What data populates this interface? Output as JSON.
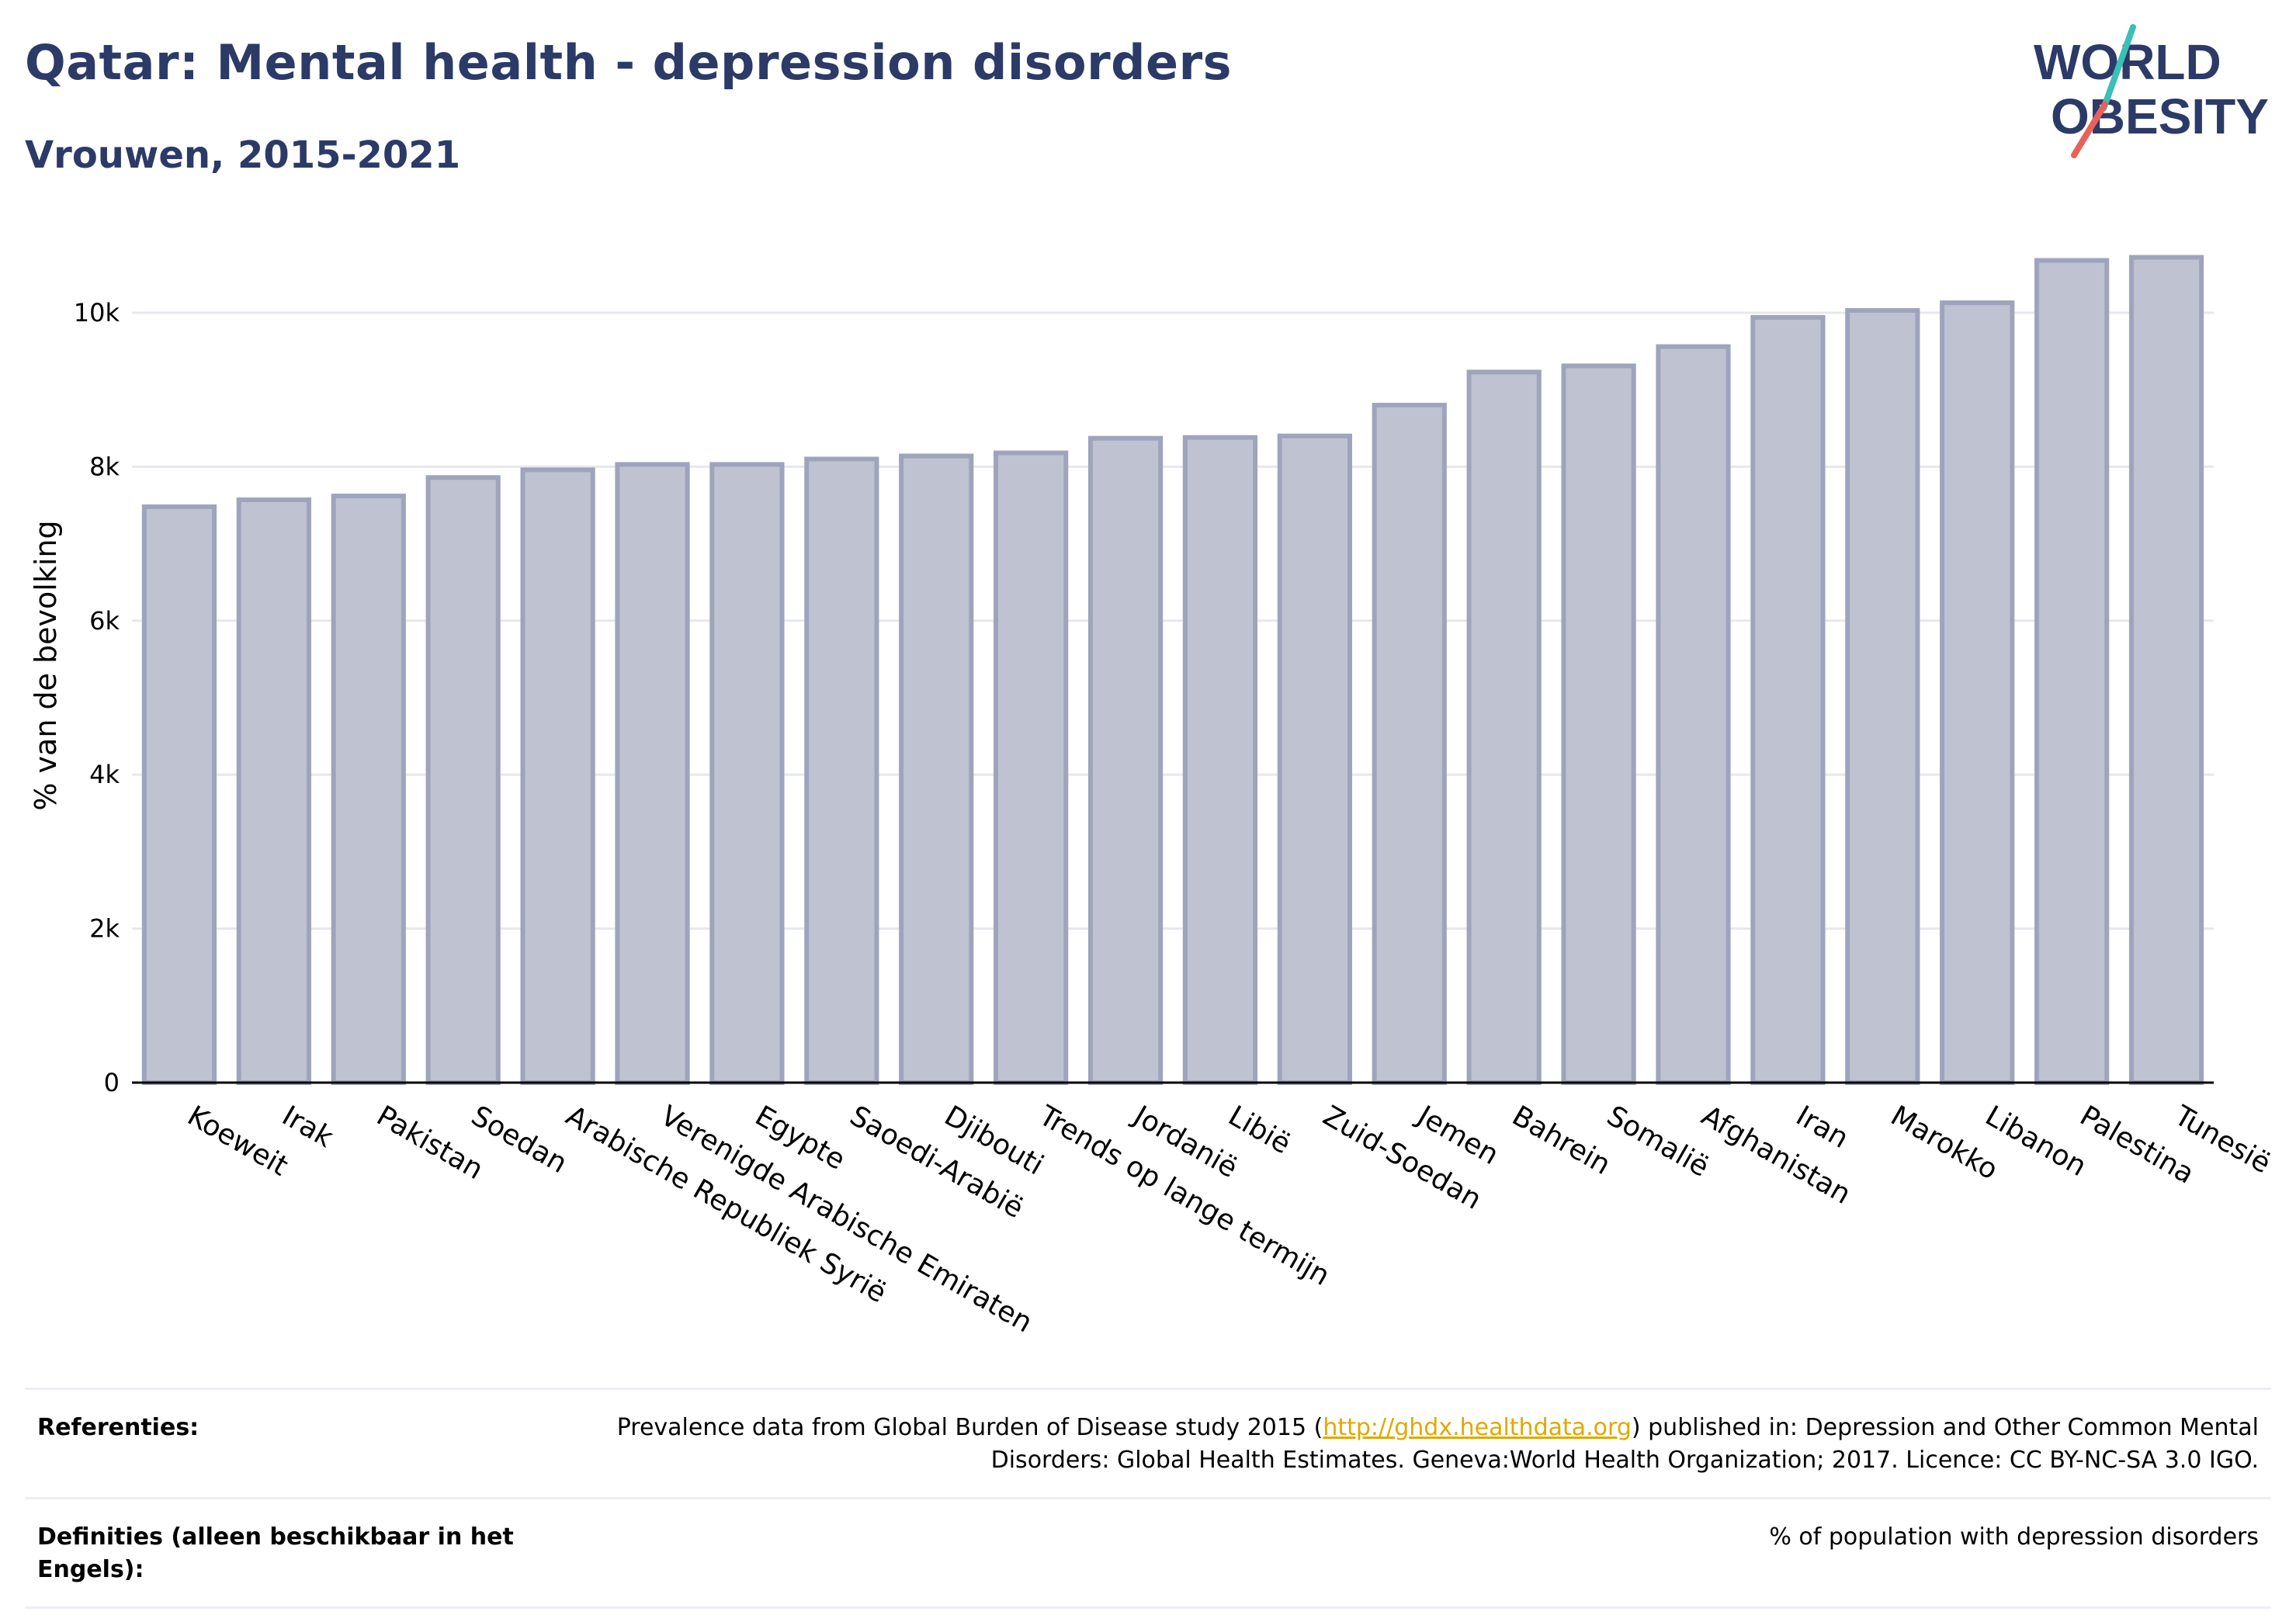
{
  "header": {
    "title": "Qatar: Mental health - depression disorders",
    "subtitle": "Vrouwen, 2015-2021"
  },
  "logo": {
    "line1": "WORLD",
    "line2": "OBESITY",
    "colors": {
      "text": "#2b3a67",
      "slash_top": "#3bbfb6",
      "slash_bottom": "#e8615a"
    }
  },
  "colors": {
    "bar_fill": "#bfc3d1",
    "bar_stroke": "#9ea4bb",
    "grid": "#e6e8ee",
    "axis": "#000000",
    "title": "#2b3a67"
  },
  "chart_data": {
    "type": "bar",
    "ylabel": "% van de bevolking",
    "ylim": [
      0,
      11000
    ],
    "yticks": [
      0,
      2000,
      4000,
      6000,
      8000,
      10000
    ],
    "ytick_labels": [
      "0",
      "2k",
      "4k",
      "6k",
      "8k",
      "10k"
    ],
    "grid": true,
    "categories": [
      "Koeweit",
      "Irak",
      "Pakistan",
      "Soedan",
      "Arabische Republiek Syrië",
      "Verenigde Arabische Emiraten",
      "Egypte",
      "Saoedi-Arabië",
      "Djibouti",
      "Trends op lange termijn",
      "Jordanië",
      "Libië",
      "Zuid-Soedan",
      "Jemen",
      "Bahrein",
      "Somalië",
      "Afghanistan",
      "Iran",
      "Marokko",
      "Libanon",
      "Palestina",
      "Tunesië"
    ],
    "values": [
      7480,
      7570,
      7620,
      7860,
      7960,
      8030,
      8030,
      8100,
      8140,
      8180,
      8370,
      8380,
      8400,
      8800,
      9230,
      9310,
      9560,
      9940,
      10030,
      10130,
      10680,
      10720
    ]
  },
  "references": {
    "ref_label": "Referenties:",
    "ref_text_before": "Prevalence data from Global Burden of Disease study 2015 (",
    "ref_link": "http://ghdx.healthdata.org",
    "ref_text_after": ") published in: Depression and Other Common Mental Disorders: Global Health Estimates. Geneva:World Health Organization; 2017. Licence: CC BY-NC-SA 3.0 IGO.",
    "def_label": "Definities (alleen beschikbaar in het Engels):",
    "def_text": "% of population with depression disorders"
  }
}
